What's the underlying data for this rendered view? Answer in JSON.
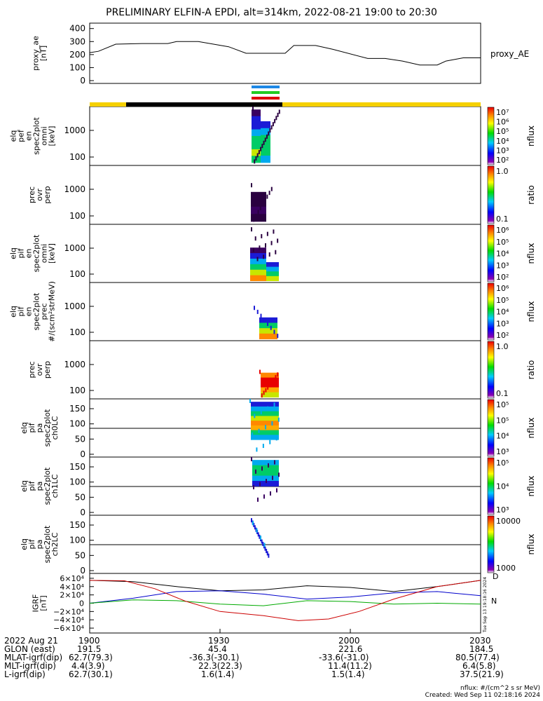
{
  "title": "PRELIMINARY ELFIN-A EPDI, alt=314km, 2022-08-21 19:00 to 20:30",
  "panel_labels": [
    [
      "proxy_ae",
      "[nT]"
    ],
    [
      "elq",
      "pef",
      "en",
      "spec2plot",
      "omni",
      "[keV]"
    ],
    [
      "prec",
      "ovr",
      "perp"
    ],
    [
      "elq",
      "pif",
      "en",
      "spec2plot",
      "omni",
      "[keV]"
    ],
    [
      "elq",
      "pif",
      "en",
      "spec2plot",
      "prec",
      "#/(scm²strMeV)"
    ],
    [
      "prec",
      "ovr",
      "perp"
    ],
    [
      "elq",
      "pif",
      "pa",
      "spec2plot",
      "ch0LC"
    ],
    [
      "elq",
      "pif",
      "pa",
      "spec2plot",
      "ch1LC"
    ],
    [
      "elq",
      "pif",
      "pa",
      "spec2plot",
      "ch2LC"
    ],
    [
      "IGRF",
      "[nT]"
    ]
  ],
  "colorbars": [
    {
      "label": "nflux",
      "ticks": [
        "10⁷",
        "10⁶",
        "10⁵",
        "10⁴",
        "10³",
        "10²"
      ]
    },
    {
      "label": "ratio",
      "ticks": [
        "1.0",
        "0.1"
      ]
    },
    {
      "label": "nflux",
      "ticks": [
        "10⁶",
        "10⁵",
        "10⁴",
        "10³",
        "10²"
      ]
    },
    {
      "label": "nflux",
      "ticks": [
        "10⁶",
        "10⁵",
        "10⁴",
        "10³",
        "10²"
      ]
    },
    {
      "label": "ratio",
      "ticks": [
        "1.0",
        "0.1"
      ]
    },
    {
      "label": "nflux",
      "ticks": [
        "10⁵",
        "10⁵",
        "10⁴",
        "10³"
      ]
    },
    {
      "label": "nflux",
      "ticks": [
        "10⁵",
        "10⁴",
        "10³"
      ]
    },
    {
      "label": "nflux",
      "ticks": [
        "10000",
        "1000"
      ]
    }
  ],
  "igrf_legend": [
    "D",
    "N"
  ],
  "vertical_stamp": "Tue Sep 13 19:18:16 2024",
  "chart_data": [
    {
      "type": "line",
      "panel": "proxy_ae",
      "series": [
        {
          "name": "proxy_AE",
          "x": [
            0,
            2,
            6,
            12,
            18,
            20,
            25,
            32,
            36,
            45,
            47,
            52,
            56,
            64,
            68,
            72,
            76,
            80,
            82,
            86,
            90
          ],
          "values": [
            215,
            225,
            280,
            285,
            285,
            300,
            300,
            260,
            210,
            210,
            270,
            270,
            240,
            170,
            170,
            150,
            120,
            120,
            150,
            175,
            175
          ]
        }
      ],
      "xlim": [
        0,
        90
      ],
      "ylim": [
        0,
        420
      ],
      "yticks": [
        "0",
        "100",
        "200",
        "300",
        "400"
      ]
    },
    {
      "type": "heatmap",
      "panel": "elq pef en spec2plot omni",
      "yticks": [
        "1000",
        "100"
      ]
    },
    {
      "type": "heatmap",
      "panel": "prec ovr perp",
      "yticks": [
        "1000",
        "100"
      ]
    },
    {
      "type": "heatmap",
      "panel": "elq pif en spec2plot omni",
      "yticks": [
        "1000",
        "100"
      ]
    },
    {
      "type": "heatmap",
      "panel": "elq pif en spec2plot prec",
      "yticks": [
        "1000",
        "100"
      ]
    },
    {
      "type": "heatmap",
      "panel": "prec ovr perp",
      "yticks": [
        "1000",
        "100"
      ]
    },
    {
      "type": "heatmap",
      "panel": "elq pif pa spec2plot ch0LC",
      "yticks": [
        "150",
        "100",
        "50",
        "0"
      ]
    },
    {
      "type": "heatmap",
      "panel": "elq pif pa spec2plot ch1LC",
      "yticks": [
        "150",
        "100",
        "50",
        "0"
      ]
    },
    {
      "type": "heatmap",
      "panel": "elq pif pa spec2plot ch2LC",
      "yticks": [
        "150",
        "100",
        "50",
        "0"
      ]
    },
    {
      "type": "line",
      "panel": "IGRF",
      "ylim": [
        -65000,
        65000
      ],
      "yticks": [
        "6×10⁴",
        "4×10⁴",
        "2×10⁴",
        "0",
        "−2×10⁴",
        "−4×10⁴",
        "−6×10⁴"
      ],
      "series": [
        {
          "color": "#000000",
          "x": [
            0,
            10,
            20,
            30,
            40,
            50,
            60,
            70,
            80,
            90
          ],
          "values": [
            55000,
            52000,
            40000,
            30000,
            32000,
            42000,
            38000,
            28000,
            40000,
            55000
          ]
        },
        {
          "color": "#0000cc",
          "x": [
            0,
            10,
            20,
            30,
            40,
            50,
            60,
            70,
            80,
            90
          ],
          "values": [
            0,
            12000,
            28000,
            30000,
            22000,
            10000,
            15000,
            25000,
            28000,
            18000
          ]
        },
        {
          "color": "#00aa00",
          "x": [
            0,
            10,
            20,
            30,
            40,
            50,
            60,
            70,
            80,
            90
          ],
          "values": [
            0,
            8000,
            6000,
            -2000,
            -6000,
            6000,
            4000,
            -2000,
            0,
            -2000
          ]
        },
        {
          "color": "#cc0000",
          "x": [
            0,
            8,
            15,
            22,
            30,
            40,
            48,
            55,
            62,
            70,
            80,
            90
          ],
          "values": [
            55000,
            54000,
            35000,
            5000,
            -20000,
            -30000,
            -42000,
            -38000,
            -20000,
            10000,
            40000,
            55000
          ]
        }
      ]
    }
  ],
  "time_axis": {
    "row_labels": [
      "2022 Aug 21",
      "GLON (east)",
      "MLAT-igrf(dip)",
      "MLT-igrf(dip)",
      "L-igrf(dip)"
    ],
    "columns": [
      [
        "1900",
        "191.5",
        "62.7(79.3)",
        "4.4(3.9)",
        "62.7(30.1)"
      ],
      [
        "1930",
        "45.4",
        "-36.3(-30.1)",
        "22.3(22.3)",
        "1.6(1.4)"
      ],
      [
        "2000",
        "221.6",
        "-33.6(-31.0)",
        "11.4(11.2)",
        "1.5(1.4)"
      ],
      [
        "2030",
        "184.5",
        "80.5(77.4)",
        "6.4(5.8)",
        "37.5(21.9)"
      ]
    ]
  },
  "footer": {
    "units": "nflux: #/(cm^2 s sr MeV)",
    "created": "Created: Wed Sep 11 02:18:16 2024"
  }
}
